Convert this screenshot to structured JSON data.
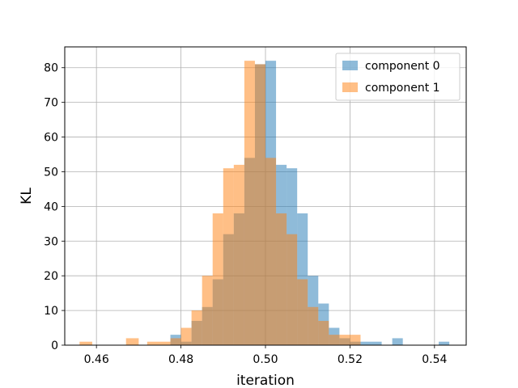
{
  "chart_data": {
    "type": "histogram",
    "xlabel": "iteration",
    "ylabel": "KL",
    "xlim": [
      0.4525,
      0.5475
    ],
    "ylim": [
      0,
      86
    ],
    "xticks": [
      0.46,
      0.48,
      0.5,
      0.52,
      0.54
    ],
    "xtick_labels": [
      "0.46",
      "0.48",
      "0.50",
      "0.52",
      "0.54"
    ],
    "yticks": [
      0,
      10,
      20,
      30,
      40,
      50,
      60,
      70,
      80
    ],
    "ytick_labels": [
      "0",
      "10",
      "20",
      "30",
      "40",
      "50",
      "60",
      "70",
      "80"
    ],
    "grid": true,
    "legend_position": "top-right",
    "series": [
      {
        "name": "component 0",
        "color": "#1f77b4",
        "opacity": 0.5,
        "bin_edges": [
          0.4775,
          0.48,
          0.4825,
          0.485,
          0.4875,
          0.49,
          0.4925,
          0.495,
          0.4975,
          0.5,
          0.5025,
          0.505,
          0.5075,
          0.51,
          0.5125,
          0.515,
          0.5175,
          0.52,
          0.5225,
          0.525,
          0.5275
        ],
        "counts": [
          3,
          1,
          7,
          11,
          19,
          32,
          38,
          54,
          81,
          82,
          52,
          51,
          38,
          20,
          12,
          5,
          2,
          1,
          1,
          1
        ],
        "extra_bins": [
          {
            "x0": 0.53,
            "x1": 0.5325,
            "count": 2
          },
          {
            "x0": 0.541,
            "x1": 0.5435,
            "count": 1
          }
        ]
      },
      {
        "name": "component 1",
        "color": "#ff7f0e",
        "opacity": 0.5,
        "bin_edges": [
          0.4775,
          0.48,
          0.4825,
          0.485,
          0.4875,
          0.49,
          0.4925,
          0.495,
          0.4975,
          0.5,
          0.5025,
          0.505,
          0.5075,
          0.51,
          0.5125,
          0.515,
          0.5175,
          0.52,
          0.5225
        ],
        "counts": [
          2,
          5,
          10,
          20,
          38,
          51,
          52,
          82,
          81,
          54,
          38,
          32,
          19,
          11,
          7,
          3,
          3,
          3
        ],
        "extra_bins": [
          {
            "x0": 0.456,
            "x1": 0.459,
            "count": 1
          },
          {
            "x0": 0.467,
            "x1": 0.47,
            "count": 2
          },
          {
            "x0": 0.472,
            "x1": 0.4775,
            "count": 1
          }
        ]
      }
    ]
  }
}
